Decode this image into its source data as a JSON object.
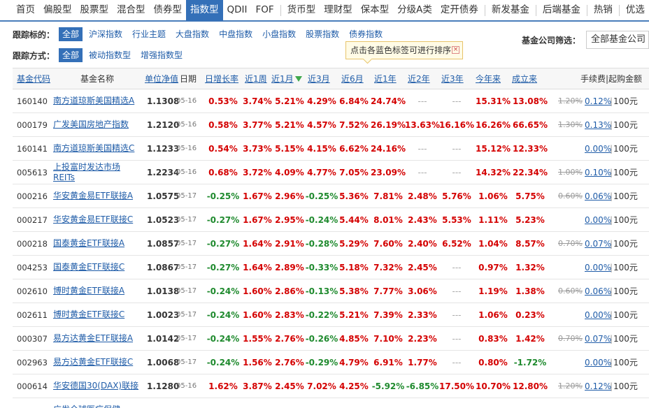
{
  "nav": {
    "items": [
      {
        "label": "首页",
        "name": "nav-home",
        "active": false
      },
      {
        "label": "偏股型",
        "name": "nav-stock-biased",
        "active": false
      },
      {
        "label": "股票型",
        "name": "nav-stock",
        "active": false
      },
      {
        "label": "混合型",
        "name": "nav-hybrid",
        "active": false
      },
      {
        "label": "债券型",
        "name": "nav-bond",
        "active": false
      },
      {
        "label": "指数型",
        "name": "nav-index",
        "active": true
      },
      {
        "label": "QDII",
        "name": "nav-qdii",
        "active": false
      },
      {
        "label": "FOF",
        "name": "nav-fof",
        "active": false
      },
      {
        "sep": true
      },
      {
        "label": "货币型",
        "name": "nav-money",
        "active": false
      },
      {
        "label": "理财型",
        "name": "nav-wealth",
        "active": false
      },
      {
        "label": "保本型",
        "name": "nav-capital-guaranteed",
        "active": false
      },
      {
        "label": "分级A类",
        "name": "nav-graded-a",
        "active": false
      },
      {
        "label": "定开债券",
        "name": "nav-fixed-open-bond",
        "active": false
      },
      {
        "sep": true
      },
      {
        "label": "新发基金",
        "name": "nav-new-funds",
        "active": false
      },
      {
        "sep": true
      },
      {
        "label": "后端基金",
        "name": "nav-back-end",
        "active": false
      },
      {
        "sep": true
      },
      {
        "label": "热销",
        "name": "nav-hot",
        "active": false
      },
      {
        "sep": true
      },
      {
        "label": "优选",
        "name": "nav-selected",
        "active": false
      }
    ]
  },
  "filters": {
    "target_label": "跟踪标的：",
    "target_tags": [
      {
        "label": "全部",
        "active": true
      },
      {
        "label": "沪深指数",
        "active": false
      },
      {
        "label": "行业主题",
        "active": false
      },
      {
        "label": "大盘指数",
        "active": false
      },
      {
        "label": "中盘指数",
        "active": false
      },
      {
        "label": "小盘指数",
        "active": false
      },
      {
        "label": "股票指数",
        "active": false
      },
      {
        "label": "债券指数",
        "active": false
      }
    ],
    "method_label": "跟踪方式：",
    "method_tags": [
      {
        "label": "全部",
        "active": true
      },
      {
        "label": "被动指数型",
        "active": false
      },
      {
        "label": "增强指数型",
        "active": false
      }
    ]
  },
  "company_filter": {
    "label": "基金公司筛选：",
    "value": "全部基金公司"
  },
  "tooltip": {
    "text": "点击各蓝色标签可进行排序",
    "close": "×"
  },
  "table": {
    "headers": {
      "code": "基金代码",
      "name": "基金名称",
      "nav": "单位净值",
      "date": "日期",
      "daily": "日增长率",
      "w1": "近1周",
      "m1": "近1月",
      "m3": "近3月",
      "m6": "近6月",
      "y1": "近1年",
      "y2": "近2年",
      "y3": "近3年",
      "ytd": "今年来",
      "since": "成立来",
      "fee": "手续费|起购金额"
    },
    "rows": [
      {
        "code": "160140",
        "name": "南方道琼斯美国精选A",
        "nav": "1.1308",
        "date": "05-16",
        "daily": "0.53%",
        "w1": "3.74%",
        "m1": "5.21%",
        "m3": "4.29%",
        "m6": "6.84%",
        "y1": "24.74%",
        "y2": "---",
        "y3": "---",
        "ytd": "15.31%",
        "since": "13.08%",
        "fee_old": "1.20%",
        "fee_new": "0.12%",
        "min": "100元"
      },
      {
        "code": "000179",
        "name": "广发美国房地产指数",
        "nav": "1.2120",
        "date": "05-16",
        "daily": "0.58%",
        "w1": "3.77%",
        "m1": "5.21%",
        "m3": "4.57%",
        "m6": "7.52%",
        "y1": "26.19%",
        "y2": "13.63%",
        "y3": "16.16%",
        "ytd": "16.26%",
        "since": "66.65%",
        "fee_old": "1.30%",
        "fee_new": "0.13%",
        "min": "100元"
      },
      {
        "code": "160141",
        "name": "南方道琼斯美国精选C",
        "nav": "1.1233",
        "date": "05-16",
        "daily": "0.54%",
        "w1": "3.73%",
        "m1": "5.15%",
        "m3": "4.15%",
        "m6": "6.62%",
        "y1": "24.16%",
        "y2": "---",
        "y3": "---",
        "ytd": "15.12%",
        "since": "12.33%",
        "fee_old": "",
        "fee_new": "0.00%",
        "min": "100元"
      },
      {
        "code": "005613",
        "name": "上投富时发达市场REITs",
        "nav": "1.2234",
        "date": "05-16",
        "daily": "0.68%",
        "w1": "3.72%",
        "m1": "4.09%",
        "m3": "4.77%",
        "m6": "7.05%",
        "y1": "23.09%",
        "y2": "---",
        "y3": "---",
        "ytd": "14.32%",
        "since": "22.34%",
        "fee_old": "1.00%",
        "fee_new": "0.10%",
        "min": "100元"
      },
      {
        "code": "000216",
        "name": "华安黄金易ETF联接A",
        "nav": "1.0575",
        "date": "05-17",
        "daily": "-0.25%",
        "w1": "1.67%",
        "m1": "2.96%",
        "m3": "-0.25%",
        "m6": "5.36%",
        "y1": "7.81%",
        "y2": "2.48%",
        "y3": "5.76%",
        "ytd": "1.06%",
        "since": "5.75%",
        "fee_old": "0.60%",
        "fee_new": "0.06%",
        "min": "100元"
      },
      {
        "code": "000217",
        "name": "华安黄金易ETF联接C",
        "nav": "1.0523",
        "date": "05-17",
        "daily": "-0.27%",
        "w1": "1.67%",
        "m1": "2.95%",
        "m3": "-0.24%",
        "m6": "5.44%",
        "y1": "8.01%",
        "y2": "2.43%",
        "y3": "5.53%",
        "ytd": "1.11%",
        "since": "5.23%",
        "fee_old": "",
        "fee_new": "0.00%",
        "min": "100元"
      },
      {
        "code": "000218",
        "name": "国泰黄金ETF联接A",
        "nav": "1.0857",
        "date": "05-17",
        "daily": "-0.27%",
        "w1": "1.64%",
        "m1": "2.91%",
        "m3": "-0.28%",
        "m6": "5.29%",
        "y1": "7.60%",
        "y2": "2.40%",
        "y3": "6.52%",
        "ytd": "1.04%",
        "since": "8.57%",
        "fee_old": "0.70%",
        "fee_new": "0.07%",
        "min": "100元"
      },
      {
        "code": "004253",
        "name": "国泰黄金ETF联接C",
        "nav": "1.0867",
        "date": "05-17",
        "daily": "-0.27%",
        "w1": "1.64%",
        "m1": "2.89%",
        "m3": "-0.33%",
        "m6": "5.18%",
        "y1": "7.32%",
        "y2": "2.45%",
        "y3": "---",
        "ytd": "0.97%",
        "since": "1.32%",
        "fee_old": "",
        "fee_new": "0.00%",
        "min": "100元"
      },
      {
        "code": "002610",
        "name": "博时黄金ETF联接A",
        "nav": "1.0138",
        "date": "05-17",
        "daily": "-0.24%",
        "w1": "1.60%",
        "m1": "2.86%",
        "m3": "-0.13%",
        "m6": "5.38%",
        "y1": "7.77%",
        "y2": "3.06%",
        "y3": "---",
        "ytd": "1.19%",
        "since": "1.38%",
        "fee_old": "0.60%",
        "fee_new": "0.06%",
        "min": "100元"
      },
      {
        "code": "002611",
        "name": "博时黄金ETF联接C",
        "nav": "1.0023",
        "date": "05-17",
        "daily": "-0.24%",
        "w1": "1.60%",
        "m1": "2.83%",
        "m3": "-0.22%",
        "m6": "5.21%",
        "y1": "7.39%",
        "y2": "2.33%",
        "y3": "---",
        "ytd": "1.06%",
        "since": "0.23%",
        "fee_old": "",
        "fee_new": "0.00%",
        "min": "100元"
      },
      {
        "code": "000307",
        "name": "易方达黄金ETF联接A",
        "nav": "1.0142",
        "date": "05-17",
        "daily": "-0.24%",
        "w1": "1.55%",
        "m1": "2.76%",
        "m3": "-0.26%",
        "m6": "4.85%",
        "y1": "7.10%",
        "y2": "2.23%",
        "y3": "---",
        "ytd": "0.83%",
        "since": "1.42%",
        "fee_old": "0.70%",
        "fee_new": "0.07%",
        "min": "100元"
      },
      {
        "code": "002963",
        "name": "易方达黄金ETF联接C",
        "nav": "1.0068",
        "date": "05-17",
        "daily": "-0.24%",
        "w1": "1.56%",
        "m1": "2.76%",
        "m3": "-0.29%",
        "m6": "4.79%",
        "y1": "6.91%",
        "y2": "1.77%",
        "y3": "---",
        "ytd": "0.80%",
        "since": "-1.72%",
        "fee_old": "",
        "fee_new": "0.00%",
        "min": "100元"
      },
      {
        "code": "000614",
        "name": "华安德国30(DAX)联接",
        "nav": "1.1280",
        "date": "05-16",
        "daily": "1.62%",
        "w1": "3.87%",
        "m1": "2.45%",
        "m3": "7.02%",
        "m6": "4.25%",
        "y1": "-5.92%",
        "y2": "-6.85%",
        "y3": "17.50%",
        "ytd": "10.70%",
        "since": "12.80%",
        "fee_old": "1.20%",
        "fee_new": "0.12%",
        "min": "100元"
      },
      {
        "code": "",
        "name": "广发全球医疗保健",
        "nav": "",
        "date": "",
        "daily": "",
        "w1": "",
        "m1": "",
        "m3": "",
        "m6": "",
        "y1": "",
        "y2": "",
        "y3": "",
        "ytd": "",
        "since": "",
        "fee_old": "",
        "fee_new": "",
        "min": ""
      }
    ]
  }
}
